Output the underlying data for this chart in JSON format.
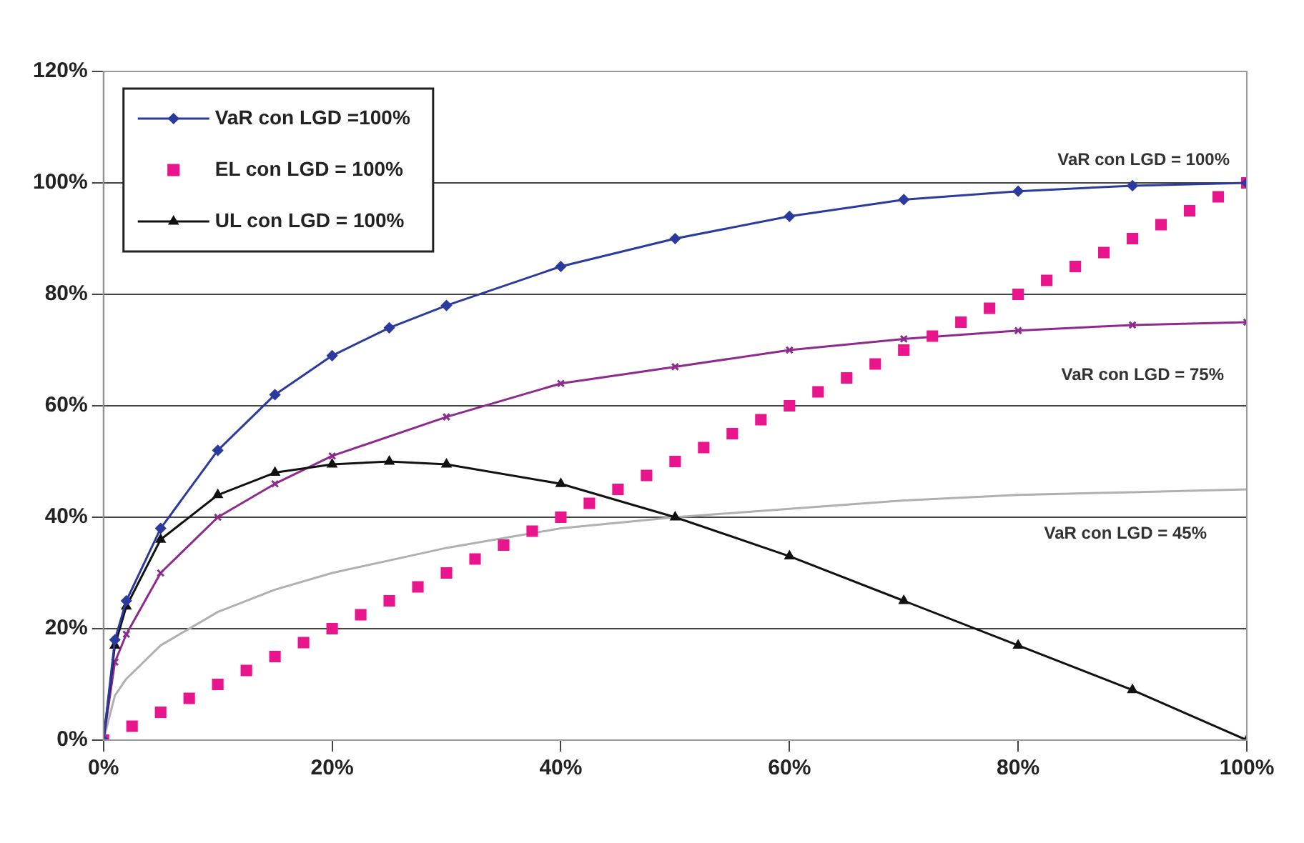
{
  "chart_data": {
    "type": "line",
    "xlim": [
      0,
      100
    ],
    "xticks": [
      {
        "value": 0,
        "label": "0%"
      },
      {
        "value": 20,
        "label": "20%"
      },
      {
        "value": 40,
        "label": "40%"
      },
      {
        "value": 60,
        "label": "60%"
      },
      {
        "value": 80,
        "label": "80%"
      },
      {
        "value": 100,
        "label": "100%"
      }
    ],
    "ylim": [
      0,
      120
    ],
    "yticks": [
      {
        "value": 0,
        "label": "0%"
      },
      {
        "value": 20,
        "label": "20%"
      },
      {
        "value": 40,
        "label": "40%"
      },
      {
        "value": 60,
        "label": "60%"
      },
      {
        "value": 80,
        "label": "80%"
      },
      {
        "value": 100,
        "label": "100%"
      },
      {
        "value": 120,
        "label": "120%"
      }
    ],
    "grid": "y",
    "legend": "top left",
    "series": [
      {
        "name": "VaR con LGD =100%",
        "color": "#2b3a9e",
        "marker": "diamond",
        "x": [
          0,
          1,
          2,
          5,
          10,
          15,
          20,
          25,
          30,
          40,
          50,
          60,
          70,
          80,
          90,
          100
        ],
        "values": [
          0,
          18,
          25,
          38,
          52,
          62,
          69,
          74,
          78,
          85,
          90,
          94,
          97,
          98.5,
          99.5,
          100
        ]
      },
      {
        "name": "EL con LGD = 100%",
        "type": "scatter",
        "color": "#e8158c",
        "marker": "square",
        "x": [
          0,
          2.5,
          5,
          7.5,
          10,
          12.5,
          15,
          17.5,
          20,
          22.5,
          25,
          27.5,
          30,
          32.5,
          35,
          37.5,
          40,
          42.5,
          45,
          47.5,
          50,
          52.5,
          55,
          57.5,
          60,
          62.5,
          65,
          67.5,
          70,
          72.5,
          75,
          77.5,
          80,
          82.5,
          85,
          87.5,
          90,
          92.5,
          95,
          97.5,
          100
        ],
        "values": [
          0,
          2.5,
          5,
          7.5,
          10,
          12.5,
          15,
          17.5,
          20,
          22.5,
          25,
          27.5,
          30,
          32.5,
          35,
          37.5,
          40,
          42.5,
          45,
          47.5,
          50,
          52.5,
          55,
          57.5,
          60,
          62.5,
          65,
          67.5,
          70,
          72.5,
          75,
          77.5,
          80,
          82.5,
          85,
          87.5,
          90,
          92.5,
          95,
          97.5,
          100
        ]
      },
      {
        "name": "UL con LGD = 100%",
        "color": "#111111",
        "marker": "triangle",
        "x": [
          0,
          1,
          2,
          5,
          10,
          15,
          20,
          25,
          30,
          40,
          50,
          60,
          70,
          80,
          90,
          100
        ],
        "values": [
          0,
          17,
          24,
          36,
          44,
          48,
          49.5,
          50,
          49.5,
          46,
          40,
          33,
          25,
          17,
          9,
          0
        ]
      },
      {
        "color": "#8e2a8e",
        "marker": "cross",
        "x": [
          0,
          1,
          2,
          5,
          10,
          15,
          20,
          30,
          40,
          50,
          60,
          70,
          80,
          90,
          100
        ],
        "values": [
          0,
          14,
          19,
          30,
          40,
          46,
          51,
          58,
          64,
          67,
          70,
          72,
          73.5,
          74.5,
          75
        ]
      },
      {
        "color": "#b0b0b0",
        "marker": "none",
        "x": [
          0,
          1,
          2,
          5,
          10,
          15,
          20,
          30,
          40,
          50,
          60,
          70,
          80,
          90,
          100
        ],
        "values": [
          0,
          8,
          11,
          17,
          23,
          27,
          30,
          34.5,
          38,
          40,
          41.5,
          43,
          44,
          44.5,
          45
        ]
      }
    ],
    "annotations": [
      "VaR con LGD = 100%",
      "VaR con LGD = 75%",
      "VaR con LGD = 45%"
    ]
  }
}
